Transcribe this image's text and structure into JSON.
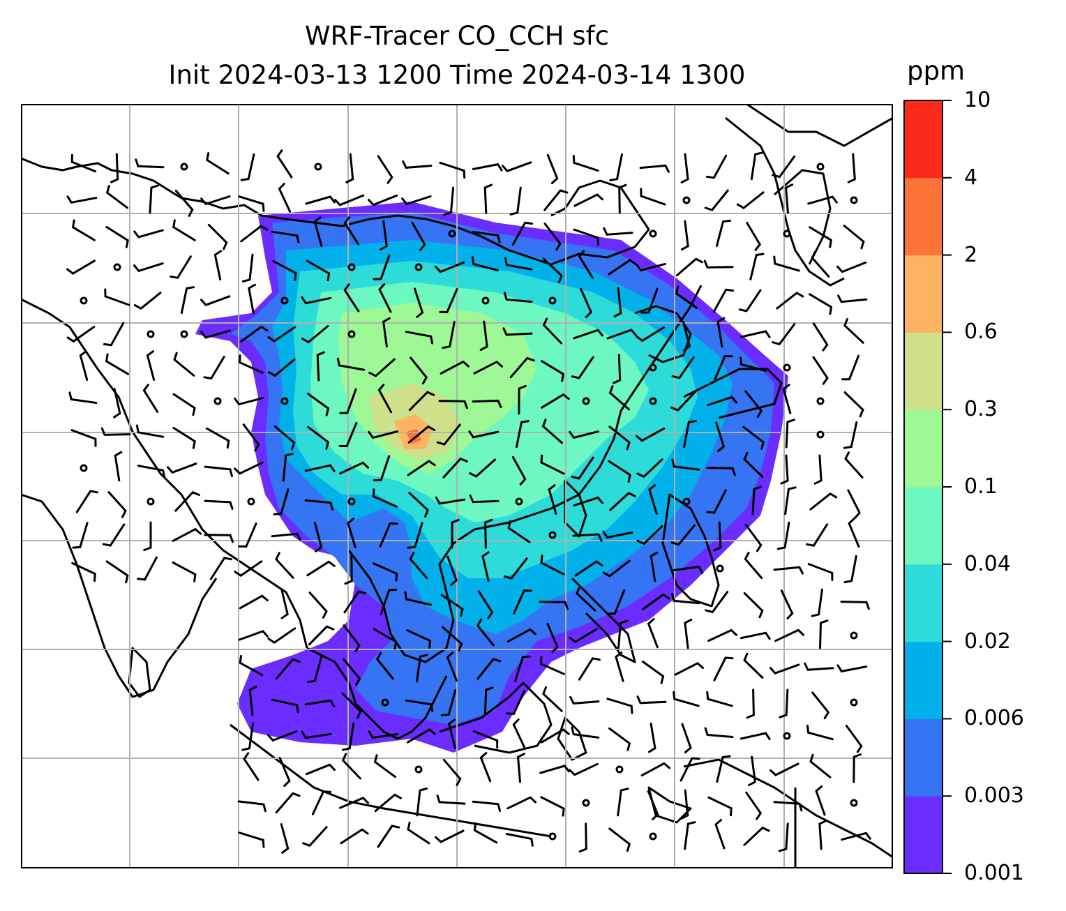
{
  "title": {
    "line1": "WRF-Tracer CO_CCH sfc",
    "line2": "Init 2024-03-13 1200 Time 2024-03-14 1300"
  },
  "colorbar": {
    "unit": "ppm",
    "levels": [
      "0.001",
      "0.003",
      "0.006",
      "0.02",
      "0.04",
      "0.1",
      "0.3",
      "0.6",
      "2",
      "4",
      "10"
    ],
    "colors": [
      "#6a2cff",
      "#3574f2",
      "#02b1ea",
      "#2ddcd8",
      "#6cf8c0",
      "#9ef896",
      "#cfe08a",
      "#fdb462",
      "#fd7438",
      "#fc2a1a"
    ]
  },
  "map": {
    "gridlines": true,
    "coastline_color": "#000000",
    "grid_color": "#b0b0b0"
  }
}
